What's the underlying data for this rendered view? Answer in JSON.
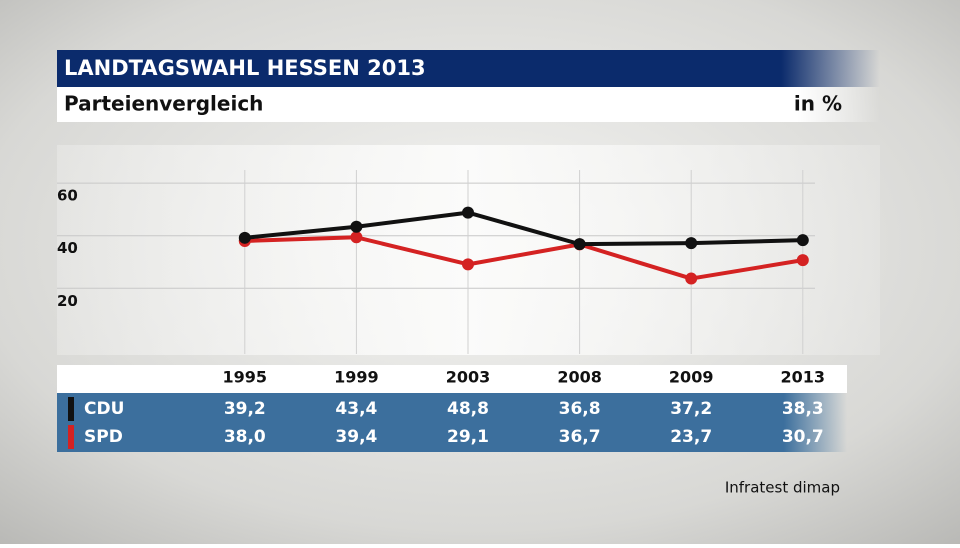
{
  "chart_data": {
    "type": "line",
    "title": "LANDTAGSWAHL HESSEN 2013",
    "subtitle": "Parteienvergleich",
    "unit": "in %",
    "source": "Infratest dimap",
    "categories": [
      "1995",
      "1999",
      "2003",
      "2008",
      "2009",
      "2013"
    ],
    "series": [
      {
        "name": "CDU",
        "color": "#111111",
        "values": [
          39.2,
          43.4,
          48.8,
          36.8,
          37.2,
          38.3
        ],
        "value_labels": [
          "39,2",
          "43,4",
          "48,8",
          "36,8",
          "37,2",
          "38,3"
        ]
      },
      {
        "name": "SPD",
        "color": "#d42222",
        "values": [
          38.0,
          39.4,
          29.1,
          36.7,
          23.7,
          30.7
        ],
        "value_labels": [
          "38,0",
          "39,4",
          "29,1",
          "36,7",
          "23,7",
          "30,7"
        ]
      }
    ],
    "ylim": [
      -5,
      65
    ],
    "yticks": [
      20,
      40,
      60
    ],
    "grid": true
  }
}
